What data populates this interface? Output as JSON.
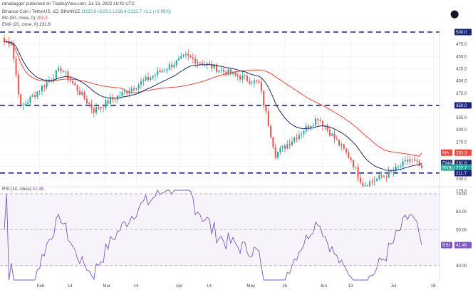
{
  "header": {
    "published": "ranadagger published on TradingView.com, Jul 13, 2022 16:42 UTC",
    "symbol_line": "Binance Coin / TetherUS, 1D, BINANCE",
    "ohlc": "O220.6  H229.1  L216.4  C222.7  +2.1 (+0.95%)",
    "ma_line": "MA (50, close, 0)",
    "ma_value": "253.3",
    "ema_line": "EMA (20, close, 0)",
    "ema_value": "231.6"
  },
  "price_axis": {
    "ticks": [
      "475.0",
      "450.0",
      "425.0",
      "400.0",
      "375.0",
      "325.0",
      "300.0",
      "275.0",
      "250.0",
      "225.0",
      "200.0",
      "175.0"
    ]
  },
  "price_labels": {
    "level_500": "500.0",
    "level_350": "350.0",
    "ma_tag": "MA",
    "ma_value": "253.3",
    "ema_tag": "EMA",
    "ema_value": "231.6",
    "symbol_tag": "BNBUSDT",
    "close_value": "222.7",
    "countdown": "07:17:29",
    "level_211": "211.7"
  },
  "rsi": {
    "header": "RSI (14, close)",
    "header_value": "41.46",
    "tag": "RSI",
    "value": "41.46",
    "ticks": [
      "70.00",
      "60.00",
      "50.00",
      "30.00"
    ]
  },
  "time_axis": {
    "labels": [
      "Feb",
      "14",
      "Mar",
      "14",
      "Apr",
      "14",
      "May",
      "16",
      "Jun",
      "13",
      "Jul",
      "18"
    ]
  },
  "colors": {
    "up": "#26a69a",
    "down": "#ef5350",
    "ma": "#e84a3f",
    "ema": "#1e2a66",
    "rsi": "#7e57c2",
    "level": "#1a237e"
  },
  "chart_data": [
    {
      "type": "candlestick",
      "title": "Binance Coin / TetherUS, 1D, BINANCE",
      "x_range": [
        "2022-01-17",
        "2022-07-13"
      ],
      "ylim": [
        165,
        510
      ],
      "horizontal_levels": [
        500.0,
        350.0,
        211.7
      ],
      "key_prices": [
        {
          "date": "2022-01-20",
          "price": 480
        },
        {
          "date": "2022-01-24",
          "price": 345
        },
        {
          "date": "2022-02-10",
          "price": 425
        },
        {
          "date": "2022-02-24",
          "price": 340
        },
        {
          "date": "2022-04-04",
          "price": 450
        },
        {
          "date": "2022-04-20",
          "price": 420
        },
        {
          "date": "2022-05-05",
          "price": 395
        },
        {
          "date": "2022-05-12",
          "price": 250
        },
        {
          "date": "2022-05-30",
          "price": 325
        },
        {
          "date": "2022-06-13",
          "price": 240
        },
        {
          "date": "2022-06-18",
          "price": 187
        },
        {
          "date": "2022-06-30",
          "price": 212
        },
        {
          "date": "2022-07-08",
          "price": 240
        },
        {
          "date": "2022-07-13",
          "price": 222.7
        }
      ],
      "series": [
        {
          "name": "MA (50, close, 0)",
          "last": 253.3
        },
        {
          "name": "EMA (20, close, 0)",
          "last": 231.6
        }
      ]
    },
    {
      "type": "line",
      "title": "RSI (14, close)",
      "ylim": [
        20,
        72
      ],
      "reference_lines": [
        70,
        50,
        30
      ],
      "series": [
        {
          "name": "RSI",
          "last": 41.46
        }
      ]
    }
  ]
}
